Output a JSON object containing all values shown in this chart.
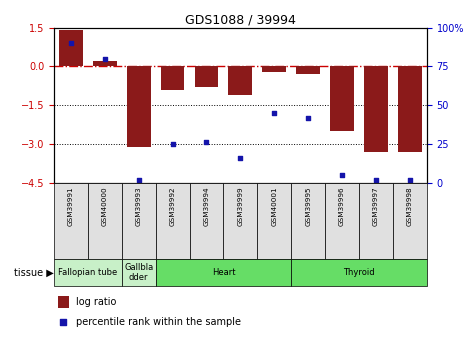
{
  "title": "GDS1088 / 39994",
  "samples": [
    "GSM39991",
    "GSM40000",
    "GSM39993",
    "GSM39992",
    "GSM39994",
    "GSM39999",
    "GSM40001",
    "GSM39995",
    "GSM39996",
    "GSM39997",
    "GSM39998"
  ],
  "log_ratio": [
    1.4,
    0.2,
    -3.1,
    -0.9,
    -0.8,
    -1.1,
    -0.2,
    -0.3,
    -2.5,
    -3.3,
    -3.3
  ],
  "percentile": [
    90,
    80,
    2,
    25,
    26,
    16,
    45,
    42,
    5,
    2,
    2
  ],
  "bar_color": "#8B1A1A",
  "dot_color": "#1414AA",
  "ylim_left": [
    -4.5,
    1.5
  ],
  "ylim_right": [
    0,
    100
  ],
  "hline_0_color": "#CC0000",
  "hline_0_style": "-.",
  "hline_m15_color": "black",
  "hline_m15_style": ":",
  "hline_m3_color": "black",
  "hline_m3_style": ":",
  "yticks_left": [
    -4.5,
    -3.0,
    -1.5,
    0.0,
    1.5
  ],
  "yticks_right": [
    0,
    25,
    50,
    75,
    100
  ],
  "tissue_groups": [
    {
      "label": "Fallopian tube",
      "start": 0,
      "end": 2,
      "color": "#c8f0c8"
    },
    {
      "label": "Gallbla\ndder",
      "start": 2,
      "end": 3,
      "color": "#c8f0c8"
    },
    {
      "label": "Heart",
      "start": 3,
      "end": 7,
      "color": "#66dd66"
    },
    {
      "label": "Thyroid",
      "start": 7,
      "end": 11,
      "color": "#66dd66"
    }
  ],
  "legend_log_ratio_label": "log ratio",
  "legend_percentile_label": "percentile rank within the sample",
  "tissue_label": "tissue",
  "background_color": "#ffffff"
}
